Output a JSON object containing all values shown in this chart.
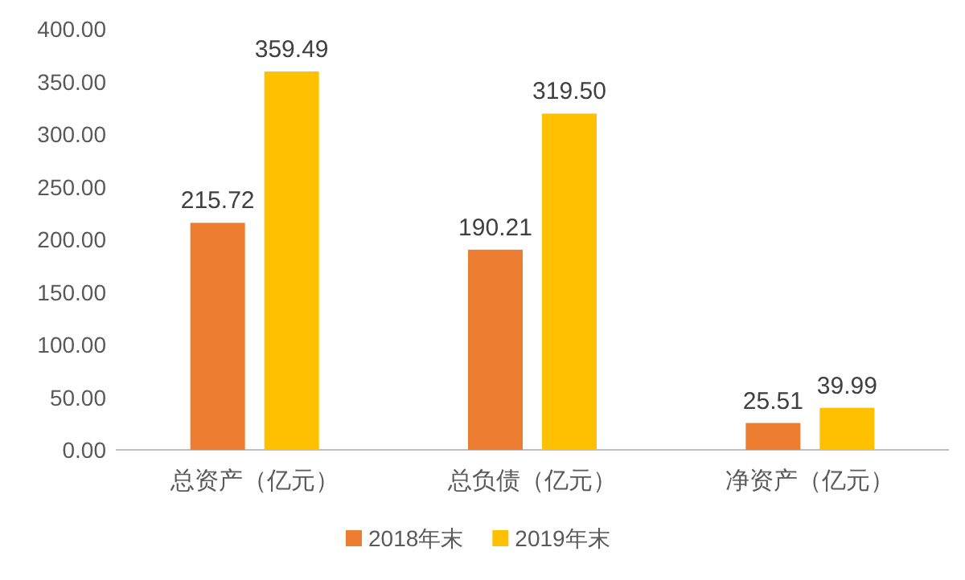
{
  "chart_data": {
    "type": "bar",
    "categories": [
      "总资产（亿元）",
      "总负债（亿元）",
      "净资产（亿元）"
    ],
    "series": [
      {
        "name": "2018年末",
        "color": "#ed7d31",
        "values": [
          215.72,
          190.21,
          25.51
        ],
        "value_labels": [
          "215.72",
          "190.21",
          "25.51"
        ]
      },
      {
        "name": "2019年末",
        "color": "#ffc000",
        "values": [
          359.49,
          319.5,
          39.99
        ],
        "value_labels": [
          "359.49",
          "319.50",
          "39.99"
        ]
      }
    ],
    "ylim": [
      0,
      400
    ],
    "yticks": [
      {
        "value": 0,
        "label": "0.00"
      },
      {
        "value": 50,
        "label": "50.00"
      },
      {
        "value": 100,
        "label": "100.00"
      },
      {
        "value": 150,
        "label": "150.00"
      },
      {
        "value": 200,
        "label": "200.00"
      },
      {
        "value": 250,
        "label": "250.00"
      },
      {
        "value": 300,
        "label": "300.00"
      },
      {
        "value": 350,
        "label": "350.00"
      },
      {
        "value": 400,
        "label": "400.00"
      }
    ],
    "legend": "bottom",
    "grid": false
  }
}
